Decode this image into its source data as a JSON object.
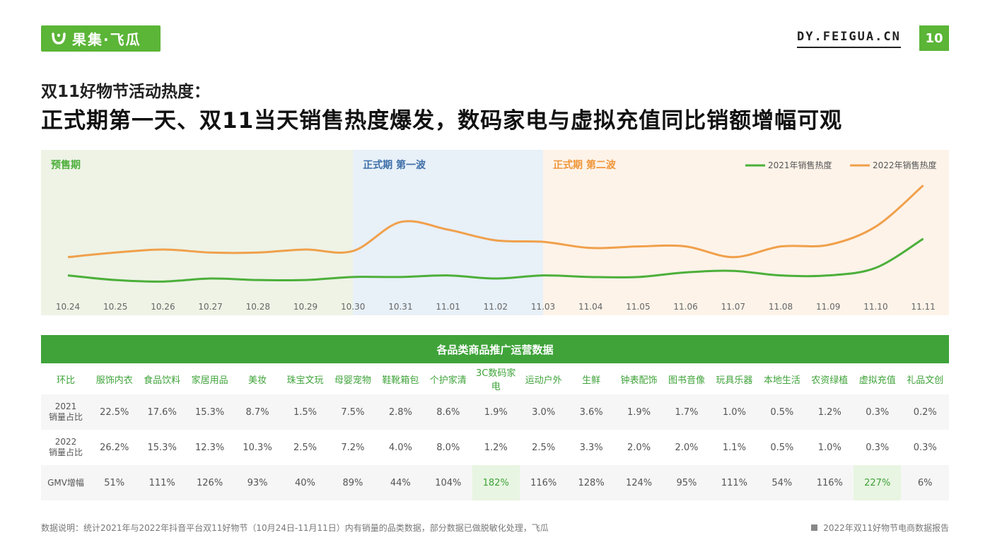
{
  "header": {
    "logo_text": "果集·飞瓜",
    "site": "DY.FEIGUA.CN",
    "page_number": "10"
  },
  "subtitle": "双11好物节活动热度：",
  "title": "正式期第一天、双11当天销售热度爆发，数码家电与虚拟充值同比销额增幅可观",
  "chart_data": {
    "type": "line",
    "title": "",
    "xlabel": "",
    "ylabel": "",
    "x": [
      "10.24",
      "10.25",
      "10.26",
      "10.27",
      "10.28",
      "10.29",
      "10.30",
      "10.31",
      "11.01",
      "11.02",
      "11.03",
      "11.04",
      "11.05",
      "11.06",
      "11.07",
      "11.08",
      "11.09",
      "11.10",
      "11.11"
    ],
    "ylim": [
      0,
      100
    ],
    "grid": false,
    "legend_position": "top-right",
    "phases": [
      {
        "label": "预售期",
        "start": "10.24",
        "end": "10.30",
        "color": "#eef3e6",
        "label_color": "#4caf3a"
      },
      {
        "label": "正式期 第一波",
        "start": "10.30",
        "end": "11.03",
        "color": "#e8f0f8",
        "label_color": "#3d6fa8"
      },
      {
        "label": "正式期 第二波",
        "start": "11.03",
        "end": "11.11",
        "color": "#fdf3e9",
        "label_color": "#f0963a"
      }
    ],
    "series": [
      {
        "name": "2021年销售热度",
        "color": "#4caf3a",
        "values": [
          27,
          24,
          23,
          25,
          24,
          24,
          26,
          26,
          27,
          25,
          27,
          26,
          26,
          29,
          30,
          27,
          27,
          32,
          51
        ]
      },
      {
        "name": "2022年销售热度",
        "color": "#f0a04b",
        "values": [
          39,
          42,
          44,
          42,
          42,
          44,
          43,
          62,
          57,
          50,
          49,
          45,
          46,
          46,
          39,
          46,
          47,
          59,
          86
        ]
      }
    ]
  },
  "table": {
    "title": "各品类商品推广运营数据",
    "corner": "环比",
    "categories": [
      "服饰内衣",
      "食品饮料",
      "家居用品",
      "美妆",
      "珠宝文玩",
      "母婴宠物",
      "鞋靴箱包",
      "个护家清",
      "3C数码家电",
      "运动户外",
      "生鲜",
      "钟表配饰",
      "图书音像",
      "玩具乐器",
      "本地生活",
      "农资绿植",
      "虚拟充值",
      "礼品文创"
    ],
    "rows": [
      {
        "label_line1": "2021",
        "label_line2": "销量占比",
        "values": [
          "22.5%",
          "17.6%",
          "15.3%",
          "8.7%",
          "1.5%",
          "7.5%",
          "2.8%",
          "8.6%",
          "1.9%",
          "3.0%",
          "3.6%",
          "1.9%",
          "1.7%",
          "1.0%",
          "0.5%",
          "1.2%",
          "0.3%",
          "0.2%"
        ]
      },
      {
        "label_line1": "2022",
        "label_line2": "销量占比",
        "values": [
          "26.2%",
          "15.3%",
          "12.3%",
          "10.3%",
          "2.5%",
          "7.2%",
          "4.0%",
          "8.0%",
          "1.2%",
          "2.5%",
          "3.3%",
          "2.0%",
          "2.0%",
          "1.1%",
          "0.5%",
          "1.0%",
          "0.3%",
          "0.3%"
        ]
      },
      {
        "label_line1": "GMV增幅",
        "label_line2": "",
        "values": [
          "51%",
          "111%",
          "126%",
          "93%",
          "40%",
          "89%",
          "44%",
          "104%",
          "182%",
          "116%",
          "128%",
          "124%",
          "95%",
          "111%",
          "54%",
          "116%",
          "227%",
          "6%"
        ],
        "highlight": [
          8,
          16
        ]
      }
    ]
  },
  "footnote": "数据说明：统计2021年与2022年抖音平台双11好物节（10月24日-11月11日）内有销量的品类数据，部分数据已做脱敏化处理，飞瓜",
  "report_name": "2022年双11好物节电商数据报告"
}
